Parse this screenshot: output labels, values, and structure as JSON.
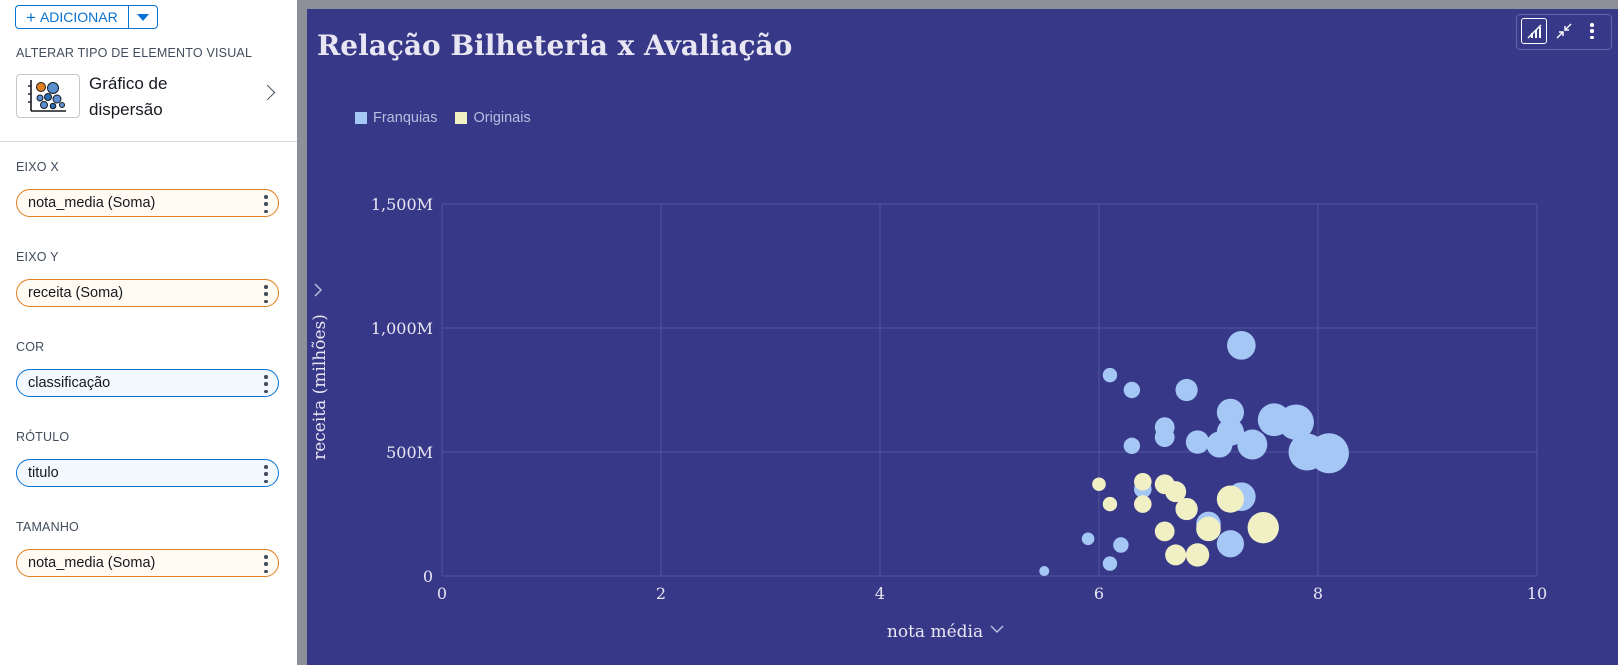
{
  "sidebar": {
    "add_label": "ADICIONAR",
    "visual_type_label": "ALTERAR TIPO DE ELEMENTO VISUAL",
    "visual_type_name": "Gráfico de dispersão",
    "wells": [
      {
        "label": "EIXO X",
        "value": "nota_media (Soma)",
        "style": "orange"
      },
      {
        "label": "EIXO Y",
        "value": "receita (Soma)",
        "style": "orange"
      },
      {
        "label": "COR",
        "value": "classificação",
        "style": "blue"
      },
      {
        "label": "RÓTULO",
        "value": "titulo",
        "style": "blue"
      },
      {
        "label": "TAMANHO",
        "value": "nota_media (Soma)",
        "style": "orange"
      }
    ]
  },
  "colors": {
    "panel_bg": "#373888",
    "franquias": "#a5c7f5",
    "originais": "#f0f0c4",
    "axis_text": "#e9e6f3",
    "grid": "#5355a0"
  },
  "icons": {
    "scatter_thumbnail": "scatter-chart-icon",
    "toolbar": [
      "visual-menu-icon",
      "collapse-icon",
      "more-options-icon"
    ],
    "y_axis_toggle": "chevron-right-icon",
    "x_axis_toggle": "chevron-down-icon"
  },
  "chart_data": {
    "type": "scatter",
    "title": "Relação Bilheteria x Avaliação",
    "xlabel": "nota média",
    "ylabel": "receita (milhões)",
    "xlim": [
      0,
      10
    ],
    "ylim": [
      0,
      1500
    ],
    "x_ticks": [
      "0",
      "2",
      "4",
      "6",
      "8",
      "10"
    ],
    "y_ticks": [
      "0",
      "500M",
      "1,000M",
      "1,500M"
    ],
    "y_tick_values": [
      0,
      500,
      1000,
      1500
    ],
    "grid": true,
    "legend_position": "top-left",
    "series": [
      {
        "name": "Franquias",
        "points": [
          {
            "x": 5.5,
            "y": 20,
            "size": 5.5
          },
          {
            "x": 5.9,
            "y": 150,
            "size": 5.9
          },
          {
            "x": 6.1,
            "y": 50,
            "size": 6.1
          },
          {
            "x": 6.1,
            "y": 810,
            "size": 6.1
          },
          {
            "x": 6.2,
            "y": 125,
            "size": 6.2
          },
          {
            "x": 6.3,
            "y": 750,
            "size": 6.3
          },
          {
            "x": 6.3,
            "y": 525,
            "size": 6.3
          },
          {
            "x": 6.4,
            "y": 350,
            "size": 6.4
          },
          {
            "x": 6.6,
            "y": 600,
            "size": 6.6
          },
          {
            "x": 6.6,
            "y": 560,
            "size": 6.6
          },
          {
            "x": 6.8,
            "y": 750,
            "size": 6.8
          },
          {
            "x": 6.8,
            "y": 270,
            "size": 6.8
          },
          {
            "x": 6.9,
            "y": 540,
            "size": 6.9
          },
          {
            "x": 7.0,
            "y": 210,
            "size": 7.0
          },
          {
            "x": 7.1,
            "y": 530,
            "size": 7.1
          },
          {
            "x": 7.2,
            "y": 660,
            "size": 7.2
          },
          {
            "x": 7.2,
            "y": 580,
            "size": 7.2
          },
          {
            "x": 7.2,
            "y": 130,
            "size": 7.2
          },
          {
            "x": 7.3,
            "y": 930,
            "size": 7.3
          },
          {
            "x": 7.3,
            "y": 320,
            "size": 7.3
          },
          {
            "x": 7.4,
            "y": 530,
            "size": 7.4
          },
          {
            "x": 7.6,
            "y": 630,
            "size": 7.6
          },
          {
            "x": 7.8,
            "y": 620,
            "size": 7.8
          },
          {
            "x": 7.9,
            "y": 500,
            "size": 7.9
          },
          {
            "x": 8.1,
            "y": 495,
            "size": 8.1
          }
        ]
      },
      {
        "name": "Originais",
        "points": [
          {
            "x": 6.0,
            "y": 370,
            "size": 6.0
          },
          {
            "x": 6.1,
            "y": 290,
            "size": 6.1
          },
          {
            "x": 6.4,
            "y": 380,
            "size": 6.4
          },
          {
            "x": 6.4,
            "y": 290,
            "size": 6.4
          },
          {
            "x": 6.6,
            "y": 370,
            "size": 6.6
          },
          {
            "x": 6.6,
            "y": 180,
            "size": 6.6
          },
          {
            "x": 6.7,
            "y": 340,
            "size": 6.7
          },
          {
            "x": 6.7,
            "y": 85,
            "size": 6.7
          },
          {
            "x": 6.8,
            "y": 270,
            "size": 6.8
          },
          {
            "x": 6.9,
            "y": 85,
            "size": 6.9
          },
          {
            "x": 7.0,
            "y": 190,
            "size": 7.0
          },
          {
            "x": 7.2,
            "y": 310,
            "size": 7.2
          },
          {
            "x": 7.5,
            "y": 195,
            "size": 7.5
          }
        ]
      }
    ]
  }
}
